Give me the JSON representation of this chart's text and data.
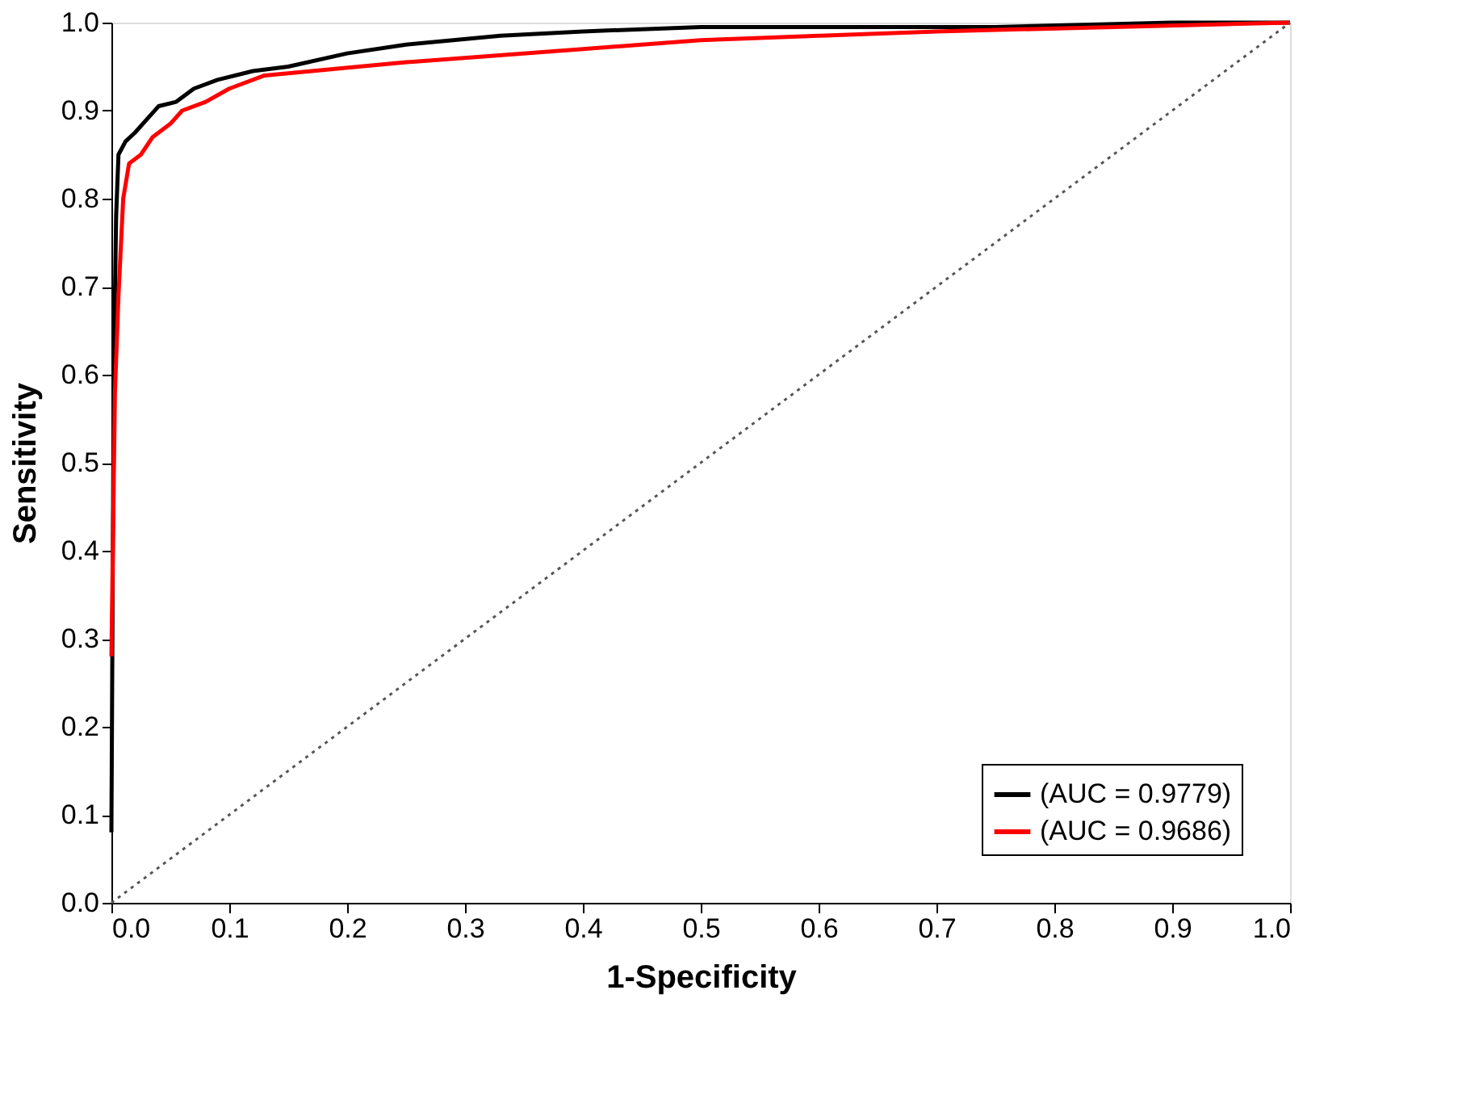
{
  "chart_data": {
    "type": "line",
    "xlabel": "1-Specificity",
    "ylabel": "Sensitivity",
    "xlim": [
      0,
      1
    ],
    "ylim": [
      0,
      1
    ],
    "xticks": [
      {
        "value": 0,
        "label": "0.0"
      },
      0.1,
      0.2,
      0.3,
      0.4,
      0.5,
      0.6,
      0.7,
      0.8,
      0.9,
      {
        "value": 1,
        "label": "1.0"
      }
    ],
    "yticks": [
      {
        "value": 0,
        "label": "0.0"
      },
      0.1,
      0.2,
      0.3,
      0.4,
      0.5,
      0.6,
      0.7,
      0.8,
      0.9,
      {
        "value": 1,
        "label": "1.0"
      }
    ],
    "grid": false,
    "legend": "bottom right",
    "marker": "none",
    "series": [
      {
        "name": "(AUC = 0.9779)",
        "color": "#000000",
        "line_style": "solid",
        "x": [
          0,
          0.002,
          0.004,
          0.006,
          0.012,
          0.02,
          0.03,
          0.04,
          0.055,
          0.07,
          0.09,
          0.12,
          0.15,
          0.2,
          0.25,
          0.33,
          0.4,
          0.5,
          0.6,
          0.75,
          0.9,
          1
        ],
        "values": [
          0.08,
          0.6,
          0.78,
          0.85,
          0.865,
          0.875,
          0.89,
          0.905,
          0.91,
          0.925,
          0.935,
          0.945,
          0.95,
          0.965,
          0.975,
          0.985,
          0.99,
          0.995,
          0.995,
          0.995,
          1.0,
          1.0
        ]
      },
      {
        "name": "(AUC = 0.9686)",
        "color": "#ff0000",
        "line_style": "solid",
        "x": [
          0,
          0.003,
          0.006,
          0.01,
          0.015,
          0.025,
          0.035,
          0.05,
          0.06,
          0.08,
          0.1,
          0.13,
          0.17,
          0.25,
          0.4,
          0.5,
          0.6,
          0.7,
          0.85,
          1
        ],
        "values": [
          0.28,
          0.58,
          0.69,
          0.8,
          0.84,
          0.85,
          0.87,
          0.885,
          0.9,
          0.91,
          0.925,
          0.94,
          0.945,
          0.955,
          0.97,
          0.98,
          0.985,
          0.99,
          0.995,
          1.0
        ]
      },
      {
        "color": "#555555",
        "line_style": "dotted",
        "x": [
          0,
          1
        ],
        "values": [
          0,
          1
        ]
      }
    ]
  }
}
